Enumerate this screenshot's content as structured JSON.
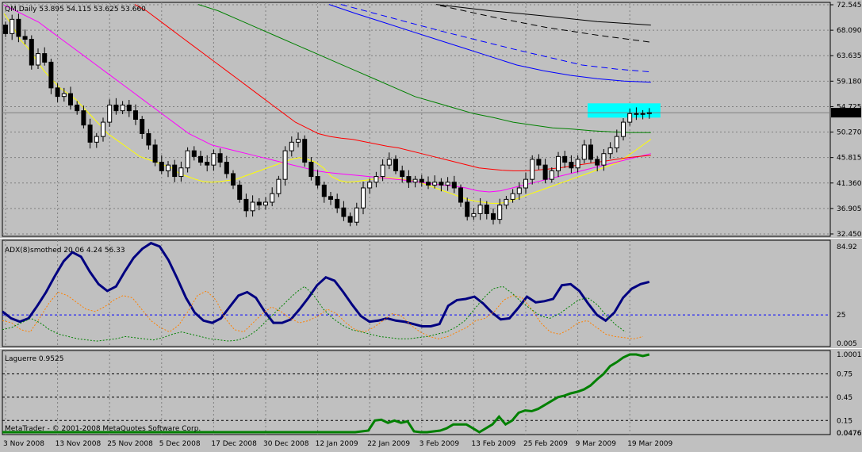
{
  "colors": {
    "background": "#c0c0c0",
    "grid": "#808080",
    "candle": "#000000",
    "ma_yellow": "#ffff00",
    "ma_magenta": "#ff00ff",
    "ma_red": "#ff0000",
    "ma_green": "#008000",
    "ma_blue": "#0000ff",
    "ma_black": "#000000",
    "highlight": "#00ffff",
    "adx_main": "#000080",
    "adx_plus": "#ff8000",
    "adx_minus": "#008000",
    "laguerre": "#008000"
  },
  "header": {
    "text": "QM,Daily  53.895 54.115 53.625 53.660"
  },
  "watermark": "MetaTrader - © 2001-2008 MetaQuotes Software Corp.",
  "x_axis": {
    "labels": [
      "3 Nov 2008",
      "13 Nov 2008",
      "25 Nov 2008",
      "5 Dec 2008",
      "17 Dec 2008",
      "30 Dec 2008",
      "12 Jan 2009",
      "22 Jan 2009",
      "3 Feb 2009",
      "13 Feb 2009",
      "25 Feb 2009",
      "9 Mar 2009",
      "19 Mar 2009"
    ],
    "label_bar_index": [
      0,
      8,
      16,
      24,
      32,
      40,
      48,
      56,
      64,
      72,
      80,
      88,
      96
    ]
  },
  "chart_data": [
    {
      "type": "candlestick",
      "title": "QM,Daily",
      "y_ticks": [
        "72.545",
        "68.090",
        "63.635",
        "59.180",
        "54.725",
        "50.270",
        "45.815",
        "41.360",
        "36.905",
        "32.450"
      ],
      "ylim": [
        32.45,
        72.545
      ],
      "current_price": "53.660",
      "ohlc_last": {
        "open": 53.895,
        "high": 54.115,
        "low": 53.625,
        "close": 53.66
      },
      "closes": [
        67.5,
        70.0,
        67.0,
        66.5,
        62.0,
        64.0,
        62.5,
        58.0,
        56.5,
        57.0,
        55.0,
        54.0,
        51.5,
        48.5,
        49.5,
        52.0,
        55.0,
        54.0,
        55.0,
        54.0,
        52.5,
        50.0,
        48.0,
        45.0,
        43.5,
        44.5,
        42.5,
        44.0,
        47.0,
        46.0,
        45.0,
        44.5,
        46.5,
        45.0,
        43.0,
        41.0,
        38.5,
        36.5,
        38.0,
        37.5,
        38.0,
        39.5,
        42.0,
        47.0,
        48.5,
        49.0,
        45.0,
        42.5,
        41.0,
        39.0,
        38.5,
        37.0,
        35.5,
        34.5,
        37.0,
        40.5,
        41.5,
        42.5,
        44.5,
        45.5,
        43.5,
        42.5,
        41.5,
        42.0,
        41.5,
        41.0,
        41.5,
        41.0,
        41.5,
        40.5,
        38.0,
        35.5,
        36.0,
        37.5,
        36.0,
        35.0,
        37.5,
        38.5,
        39.5,
        40.5,
        42.0,
        45.5,
        44.5,
        42.0,
        43.5,
        46.0,
        45.0,
        44.0,
        45.5,
        48.0,
        45.5,
        44.5,
        46.5,
        47.5,
        49.5,
        52.0,
        53.5,
        53.5,
        53.5,
        53.66
      ],
      "series": [
        {
          "name": "MA yellow",
          "color": "#ffff00",
          "values": [
            71.0,
            69.0,
            66.5,
            65.0,
            63.0,
            61.0,
            59.5,
            58.0,
            57.0,
            56.0,
            54.5,
            53.0,
            51.5,
            50.0,
            49.0,
            48.0,
            47.0,
            46.0,
            45.5,
            45.0,
            44.5,
            44.0,
            43.0,
            42.5,
            42.0,
            41.6,
            41.5,
            41.6,
            41.8,
            42.0,
            42.5,
            43.0,
            43.5,
            44.0,
            44.5,
            45.0,
            45.5,
            45.8,
            45.5,
            45.0,
            44.0,
            42.5,
            41.8,
            41.5,
            41.6,
            41.8,
            42.0,
            42.2,
            42.3,
            42.2,
            42.0,
            41.8,
            41.5,
            41.0,
            40.5,
            40.0,
            39.5,
            39.0,
            38.5,
            38.2,
            38.0,
            37.8,
            37.8,
            38.0,
            38.5,
            39.0,
            39.5,
            40.0,
            40.5,
            41.0,
            41.5,
            42.0,
            42.5,
            43.0,
            43.5,
            44.0,
            44.5,
            45.0,
            46.0,
            47.0,
            48.0,
            49.0
          ]
        },
        {
          "name": "MA magenta",
          "color": "#ff00ff",
          "values": [
            72.5,
            71.5,
            70.5,
            69.5,
            68.0,
            66.5,
            65.0,
            63.5,
            62.0,
            60.5,
            59.0,
            57.5,
            56.0,
            54.5,
            53.0,
            51.5,
            50.0,
            49.0,
            48.0,
            47.5,
            47.0,
            46.5,
            46.0,
            45.5,
            45.0,
            44.5,
            44.0,
            43.5,
            43.2,
            43.0,
            42.8,
            42.6,
            42.4,
            42.2,
            42.0,
            41.8,
            41.5,
            41.2,
            41.0,
            40.8,
            40.5,
            40.0,
            39.8,
            40.0,
            40.5,
            41.0,
            41.5,
            42.0,
            42.5,
            43.0,
            43.5,
            44.0,
            44.5,
            45.0,
            45.5,
            46.0,
            46.5
          ]
        },
        {
          "name": "MA red",
          "color": "#ff0000",
          "values": [
            72.6,
            71.5,
            70.0,
            68.5,
            67.0,
            65.5,
            64.0,
            62.5,
            61.0,
            59.5,
            58.0,
            56.5,
            55.0,
            53.5,
            52.0,
            51.0,
            50.0,
            49.5,
            49.2,
            49.0,
            48.6,
            48.2,
            47.8,
            47.5,
            47.0,
            46.5,
            46.0,
            45.5,
            45.0,
            44.5,
            44.0,
            43.8,
            43.6,
            43.5,
            43.5,
            43.6,
            43.8,
            44.0,
            44.3,
            44.6,
            44.9,
            45.2,
            45.5,
            45.8,
            46.0,
            46.2
          ]
        },
        {
          "name": "MA green",
          "color": "#008000",
          "values": [
            72.6,
            71.5,
            70.0,
            68.5,
            67.0,
            65.5,
            64.0,
            62.5,
            61.0,
            59.5,
            58.0,
            56.5,
            55.5,
            54.5,
            53.5,
            52.8,
            52.0,
            51.5,
            51.0,
            50.8,
            50.5,
            50.3,
            50.2,
            50.2
          ]
        },
        {
          "name": "MA blue solid",
          "color": "#0000ff",
          "values": [
            72.6,
            71.0,
            69.5,
            68.0,
            66.5,
            65.0,
            63.5,
            62.0,
            61.0,
            60.2,
            59.6,
            59.2,
            59.0
          ]
        },
        {
          "name": "MA blue dashed",
          "color": "#0000ff",
          "values": [
            72.6,
            71.0,
            69.4,
            67.8,
            66.3,
            64.8,
            63.4,
            62.0,
            61.3,
            60.8
          ]
        },
        {
          "name": "MA black solid",
          "color": "#000000",
          "values": [
            72.6,
            71.5,
            70.6,
            69.6,
            69.0
          ]
        },
        {
          "name": "MA black dashed",
          "color": "#000000",
          "values": [
            72.4,
            70.4,
            68.6,
            67.2,
            66.0
          ]
        }
      ]
    },
    {
      "type": "line",
      "title": "ADX(8)smothed 20.06 4.24 56.33",
      "y_ticks": [
        "84.92",
        "25",
        "0.005"
      ],
      "ylim": [
        0,
        84.92
      ],
      "level": 25,
      "series": [
        {
          "name": "ADX",
          "color": "#000080",
          "values": [
            28,
            22,
            19,
            22,
            33,
            45,
            59,
            72,
            80,
            76,
            63,
            52,
            46,
            50,
            63,
            75,
            83,
            88,
            85,
            73,
            57,
            40,
            27,
            20,
            18,
            22,
            32,
            42,
            45,
            40,
            28,
            18,
            18,
            21,
            30,
            40,
            51,
            58,
            55,
            45,
            34,
            24,
            19,
            20,
            22,
            20,
            19,
            17,
            15,
            15,
            17,
            33,
            38,
            39,
            41,
            35,
            27,
            21,
            22,
            31,
            41,
            36,
            37,
            39,
            51,
            52,
            46,
            35,
            25,
            20,
            27,
            40,
            48,
            52,
            54
          ]
        },
        {
          "name": "plus",
          "color": "#ff8000",
          "values": [
            20,
            18,
            12,
            10,
            22,
            35,
            45,
            42,
            36,
            30,
            28,
            32,
            38,
            42,
            40,
            30,
            20,
            14,
            10,
            16,
            28,
            42,
            46,
            38,
            22,
            12,
            10,
            18,
            26,
            32,
            28,
            22,
            18,
            20,
            24,
            30,
            26,
            18,
            12,
            10,
            14,
            20,
            26,
            24,
            16,
            10,
            6,
            4,
            6,
            10,
            14,
            20,
            22,
            28,
            38,
            42,
            40,
            30,
            18,
            10,
            8,
            12,
            18,
            20,
            14,
            8,
            6,
            5,
            4,
            6
          ]
        },
        {
          "name": "minus",
          "color": "#008000",
          "values": [
            12,
            14,
            18,
            22,
            18,
            12,
            8,
            6,
            4,
            3,
            2,
            3,
            4,
            6,
            5,
            4,
            3,
            5,
            8,
            10,
            8,
            6,
            4,
            3,
            2,
            3,
            6,
            12,
            20,
            28,
            36,
            44,
            50,
            42,
            30,
            22,
            16,
            12,
            10,
            8,
            6,
            5,
            4,
            4,
            5,
            6,
            8,
            10,
            14,
            20,
            30,
            40,
            48,
            50,
            44,
            36,
            30,
            24,
            22,
            26,
            32,
            38,
            40,
            34,
            24,
            16,
            10
          ]
        }
      ]
    },
    {
      "type": "line",
      "title": "Laguerre 0.9525",
      "y_ticks": [
        "1.0001",
        "0.75",
        "0.45",
        "0.15",
        "0.0476",
        "0.0476"
      ],
      "ylim": [
        0.0,
        1.0001
      ],
      "levels": [
        0.75,
        0.45,
        0.15
      ],
      "series": [
        {
          "name": "Laguerre",
          "color": "#008000",
          "values": [
            0,
            0,
            0,
            0,
            0,
            0,
            0,
            0,
            0,
            0,
            0,
            0,
            0,
            0,
            0,
            0,
            0,
            0,
            0,
            0,
            0,
            0,
            0,
            0,
            0,
            0,
            0,
            0,
            0,
            0,
            0,
            0,
            0,
            0,
            0,
            0,
            0,
            0,
            0,
            0,
            0,
            0,
            0,
            0,
            0,
            0,
            0,
            0,
            0,
            0,
            0,
            0,
            0,
            0,
            0,
            0.01,
            0.02,
            0.15,
            0.16,
            0.12,
            0.15,
            0.12,
            0.14,
            0.01,
            0.0,
            0.0,
            0.01,
            0.02,
            0.05,
            0.1,
            0.1,
            0.1,
            0.05,
            0.0,
            0.05,
            0.1,
            0.2,
            0.1,
            0.15,
            0.25,
            0.28,
            0.27,
            0.3,
            0.35,
            0.4,
            0.45,
            0.47,
            0.5,
            0.52,
            0.55,
            0.6,
            0.68,
            0.75,
            0.85,
            0.9,
            0.96,
            1.0,
            1.0,
            0.98,
            1.0
          ]
        }
      ]
    }
  ]
}
